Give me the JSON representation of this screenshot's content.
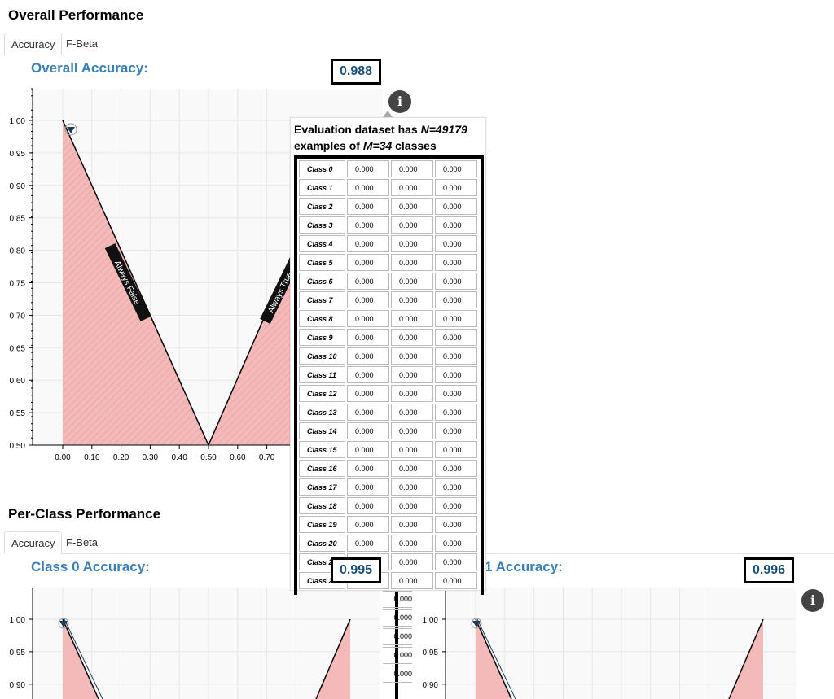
{
  "overall": {
    "title": "Overall Performance",
    "tabs": [
      {
        "label": "Accuracy",
        "active": true
      },
      {
        "label": "F-Beta",
        "active": false
      }
    ],
    "plot_title": "Overall Accuracy:",
    "value": "0.988",
    "annotations": [
      "Always False",
      "Always True"
    ],
    "y_ticks": [
      "1.00",
      "0.95",
      "0.90",
      "0.85",
      "0.80",
      "0.75",
      "0.70",
      "0.65",
      "0.60",
      "0.55",
      "0.50"
    ],
    "x_ticks": [
      "0.00",
      "0.10",
      "0.20",
      "0.30",
      "0.40",
      "0.50",
      "0.60",
      "0.70"
    ]
  },
  "tooltip": {
    "line1_pre": "Evaluation dataset has ",
    "n_text": "N=49179",
    "line2_pre": "examples of ",
    "m_text": "M=34",
    "line2_post": " classes",
    "rows": [
      {
        "label": "Class 0",
        "v": [
          "0.000",
          "0.000",
          "0.000"
        ]
      },
      {
        "label": "Class 1",
        "v": [
          "0.000",
          "0.000",
          "0.000"
        ]
      },
      {
        "label": "Class 2",
        "v": [
          "0.000",
          "0.000",
          "0.000"
        ]
      },
      {
        "label": "Class 3",
        "v": [
          "0.000",
          "0.000",
          "0.000"
        ]
      },
      {
        "label": "Class 4",
        "v": [
          "0.000",
          "0.000",
          "0.000"
        ]
      },
      {
        "label": "Class 5",
        "v": [
          "0.000",
          "0.000",
          "0.000"
        ]
      },
      {
        "label": "Class 6",
        "v": [
          "0.000",
          "0.000",
          "0.000"
        ]
      },
      {
        "label": "Class 7",
        "v": [
          "0.000",
          "0.000",
          "0.000"
        ]
      },
      {
        "label": "Class 8",
        "v": [
          "0.000",
          "0.000",
          "0.000"
        ]
      },
      {
        "label": "Class 9",
        "v": [
          "0.000",
          "0.000",
          "0.000"
        ]
      },
      {
        "label": "Class 10",
        "v": [
          "0.000",
          "0.000",
          "0.000"
        ]
      },
      {
        "label": "Class 11",
        "v": [
          "0.000",
          "0.000",
          "0.000"
        ]
      },
      {
        "label": "Class 12",
        "v": [
          "0.000",
          "0.000",
          "0.000"
        ]
      },
      {
        "label": "Class 13",
        "v": [
          "0.000",
          "0.000",
          "0.000"
        ]
      },
      {
        "label": "Class 14",
        "v": [
          "0.000",
          "0.000",
          "0.000"
        ]
      },
      {
        "label": "Class 15",
        "v": [
          "0.000",
          "0.000",
          "0.000"
        ]
      },
      {
        "label": "Class 16",
        "v": [
          "0.000",
          "0.000",
          "0.000"
        ]
      },
      {
        "label": "Class 17",
        "v": [
          "0.000",
          "0.000",
          "0.000"
        ]
      },
      {
        "label": "Class 18",
        "v": [
          "0.000",
          "0.000",
          "0.000"
        ]
      },
      {
        "label": "Class 19",
        "v": [
          "0.000",
          "0.000",
          "0.000"
        ]
      },
      {
        "label": "Class 20",
        "v": [
          "0.000",
          "0.000",
          "0.000"
        ]
      },
      {
        "label": "Class 21",
        "v": [
          "0.000",
          "0.000",
          "0.000"
        ]
      },
      {
        "label": "Class 22",
        "v": [
          "0.000",
          "0.000",
          "0.000"
        ]
      }
    ]
  },
  "per_class": {
    "title": "Per-Class Performance",
    "tabs": [
      {
        "label": "Accuracy",
        "active": true
      },
      {
        "label": "F-Beta",
        "active": false
      }
    ],
    "plots": [
      {
        "plot_title": "Class 0 Accuracy:",
        "value": "0.995",
        "y_ticks": [
          "1.00",
          "0.95",
          "0.90"
        ]
      },
      {
        "plot_title": "Class 1 Accuracy:",
        "value": "0.996",
        "y_ticks": [
          "1.00",
          "0.95",
          "0.90"
        ]
      }
    ],
    "tooltip_partial_values": [
      "0.000",
      "0.000",
      "0.000",
      "0.000",
      "0.000"
    ]
  },
  "colors": {
    "fill": "#f4b9b9",
    "accent": "#3a7fb5",
    "value": "#1a4e78",
    "marker": "#1f3b57"
  },
  "icons": [
    "info-icon"
  ]
}
